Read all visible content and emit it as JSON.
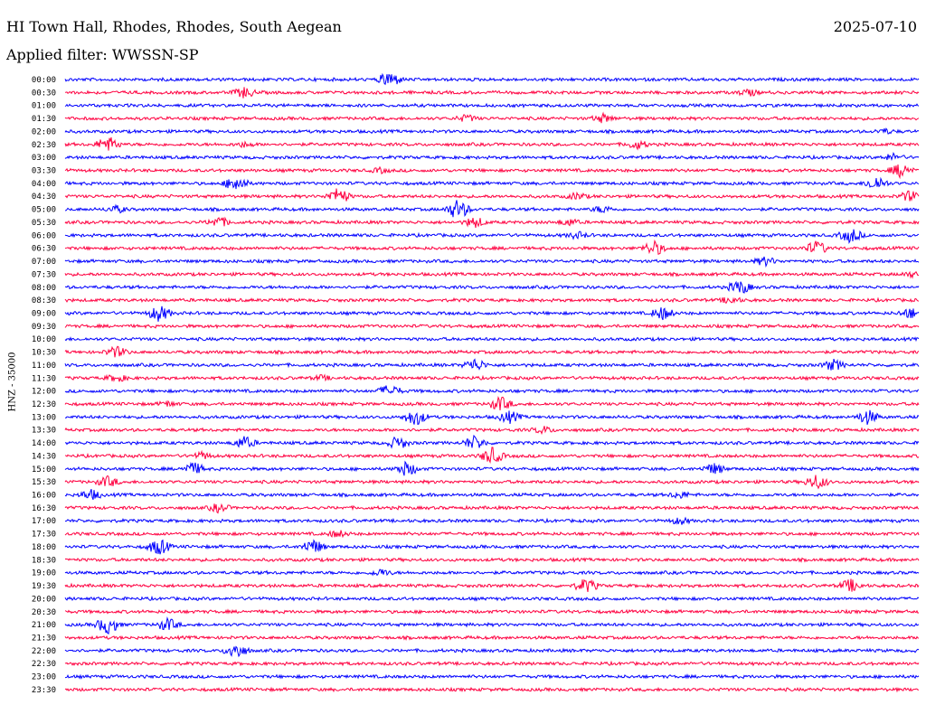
{
  "header": {
    "station": "HI Town Hall, Rhodes, Rhodes, South Aegean",
    "date": "2025-07-10",
    "filter_label": "Applied filter: WWSSN-SP"
  },
  "y_axis_label": "HNZ - 35000",
  "colors": {
    "trace_a": "#0000ff",
    "trace_b": "#ff0040",
    "background": "#ffffff",
    "text": "#000000"
  },
  "rows": [
    {
      "time": "00:00",
      "color": "blue",
      "events": [
        {
          "at": 0.38,
          "amp": 9
        }
      ]
    },
    {
      "time": "00:30",
      "color": "red",
      "events": [
        {
          "at": 0.21,
          "amp": 6
        },
        {
          "at": 0.8,
          "amp": 4
        }
      ]
    },
    {
      "time": "01:00",
      "color": "blue",
      "events": []
    },
    {
      "time": "01:30",
      "color": "red",
      "events": [
        {
          "at": 0.47,
          "amp": 4
        },
        {
          "at": 0.63,
          "amp": 5
        }
      ]
    },
    {
      "time": "02:00",
      "color": "blue",
      "events": [
        {
          "at": 0.96,
          "amp": 3
        }
      ]
    },
    {
      "time": "02:30",
      "color": "red",
      "events": [
        {
          "at": 0.05,
          "amp": 9
        },
        {
          "at": 0.21,
          "amp": 3
        },
        {
          "at": 0.67,
          "amp": 5
        }
      ]
    },
    {
      "time": "03:00",
      "color": "blue",
      "events": [
        {
          "at": 0.97,
          "amp": 4
        }
      ]
    },
    {
      "time": "03:30",
      "color": "red",
      "events": [
        {
          "at": 0.37,
          "amp": 3
        },
        {
          "at": 0.98,
          "amp": 8
        }
      ]
    },
    {
      "time": "04:00",
      "color": "blue",
      "events": [
        {
          "at": 0.2,
          "amp": 9
        },
        {
          "at": 0.95,
          "amp": 8
        }
      ]
    },
    {
      "time": "04:30",
      "color": "red",
      "events": [
        {
          "at": 0.32,
          "amp": 9
        },
        {
          "at": 0.6,
          "amp": 4
        },
        {
          "at": 0.99,
          "amp": 6
        }
      ]
    },
    {
      "time": "05:00",
      "color": "blue",
      "events": [
        {
          "at": 0.46,
          "amp": 11
        },
        {
          "at": 0.06,
          "amp": 4
        },
        {
          "at": 0.63,
          "amp": 4
        }
      ]
    },
    {
      "time": "05:30",
      "color": "red",
      "events": [
        {
          "at": 0.18,
          "amp": 6
        },
        {
          "at": 0.48,
          "amp": 6
        },
        {
          "at": 0.59,
          "amp": 4
        }
      ]
    },
    {
      "time": "06:00",
      "color": "blue",
      "events": [
        {
          "at": 0.92,
          "amp": 8
        },
        {
          "at": 0.6,
          "amp": 4
        }
      ]
    },
    {
      "time": "06:30",
      "color": "red",
      "events": [
        {
          "at": 0.69,
          "amp": 8
        },
        {
          "at": 0.88,
          "amp": 8
        }
      ]
    },
    {
      "time": "07:00",
      "color": "blue",
      "events": [
        {
          "at": 0.82,
          "amp": 5
        }
      ]
    },
    {
      "time": "07:30",
      "color": "red",
      "events": [
        {
          "at": 0.99,
          "amp": 3
        }
      ]
    },
    {
      "time": "08:00",
      "color": "blue",
      "events": [
        {
          "at": 0.79,
          "amp": 8
        }
      ]
    },
    {
      "time": "08:30",
      "color": "red",
      "events": [
        {
          "at": 0.78,
          "amp": 4
        }
      ]
    },
    {
      "time": "09:00",
      "color": "blue",
      "events": [
        {
          "at": 0.11,
          "amp": 9
        },
        {
          "at": 0.7,
          "amp": 7
        },
        {
          "at": 0.99,
          "amp": 6
        }
      ]
    },
    {
      "time": "09:30",
      "color": "red",
      "events": []
    },
    {
      "time": "10:00",
      "color": "blue",
      "events": []
    },
    {
      "time": "10:30",
      "color": "red",
      "events": [
        {
          "at": 0.06,
          "amp": 6
        }
      ]
    },
    {
      "time": "11:00",
      "color": "blue",
      "events": [
        {
          "at": 0.48,
          "amp": 7
        },
        {
          "at": 0.9,
          "amp": 6
        }
      ]
    },
    {
      "time": "11:30",
      "color": "red",
      "events": [
        {
          "at": 0.06,
          "amp": 4
        },
        {
          "at": 0.3,
          "amp": 3
        }
      ]
    },
    {
      "time": "12:00",
      "color": "blue",
      "events": [
        {
          "at": 0.38,
          "amp": 7
        }
      ]
    },
    {
      "time": "12:30",
      "color": "red",
      "events": [
        {
          "at": 0.51,
          "amp": 8
        },
        {
          "at": 0.12,
          "amp": 3
        }
      ]
    },
    {
      "time": "13:00",
      "color": "blue",
      "events": [
        {
          "at": 0.41,
          "amp": 9
        },
        {
          "at": 0.52,
          "amp": 7
        },
        {
          "at": 0.94,
          "amp": 8
        }
      ]
    },
    {
      "time": "13:30",
      "color": "red",
      "events": [
        {
          "at": 0.56,
          "amp": 4
        }
      ]
    },
    {
      "time": "14:00",
      "color": "blue",
      "events": [
        {
          "at": 0.21,
          "amp": 7
        },
        {
          "at": 0.39,
          "amp": 7
        },
        {
          "at": 0.48,
          "amp": 8
        }
      ]
    },
    {
      "time": "14:30",
      "color": "red",
      "events": [
        {
          "at": 0.5,
          "amp": 9
        },
        {
          "at": 0.16,
          "amp": 4
        }
      ]
    },
    {
      "time": "15:00",
      "color": "blue",
      "events": [
        {
          "at": 0.15,
          "amp": 7
        },
        {
          "at": 0.4,
          "amp": 8
        },
        {
          "at": 0.76,
          "amp": 6
        }
      ]
    },
    {
      "time": "15:30",
      "color": "red",
      "events": [
        {
          "at": 0.05,
          "amp": 6
        },
        {
          "at": 0.88,
          "amp": 8
        }
      ]
    },
    {
      "time": "16:00",
      "color": "blue",
      "events": [
        {
          "at": 0.03,
          "amp": 6
        },
        {
          "at": 0.72,
          "amp": 4
        }
      ]
    },
    {
      "time": "16:30",
      "color": "red",
      "events": [
        {
          "at": 0.18,
          "amp": 5
        }
      ]
    },
    {
      "time": "17:00",
      "color": "blue",
      "events": [
        {
          "at": 0.72,
          "amp": 4
        }
      ]
    },
    {
      "time": "17:30",
      "color": "red",
      "events": [
        {
          "at": 0.32,
          "amp": 4
        }
      ]
    },
    {
      "time": "18:00",
      "color": "blue",
      "events": [
        {
          "at": 0.11,
          "amp": 9
        },
        {
          "at": 0.29,
          "amp": 8
        }
      ]
    },
    {
      "time": "18:30",
      "color": "red",
      "events": []
    },
    {
      "time": "19:00",
      "color": "blue",
      "events": [
        {
          "at": 0.37,
          "amp": 4
        }
      ]
    },
    {
      "time": "19:30",
      "color": "red",
      "events": [
        {
          "at": 0.61,
          "amp": 8
        },
        {
          "at": 0.92,
          "amp": 7
        }
      ]
    },
    {
      "time": "20:00",
      "color": "blue",
      "events": []
    },
    {
      "time": "20:30",
      "color": "red",
      "events": []
    },
    {
      "time": "21:00",
      "color": "blue",
      "events": [
        {
          "at": 0.05,
          "amp": 10
        },
        {
          "at": 0.12,
          "amp": 7
        }
      ]
    },
    {
      "time": "21:30",
      "color": "red",
      "events": []
    },
    {
      "time": "22:00",
      "color": "blue",
      "events": [
        {
          "at": 0.2,
          "amp": 9
        }
      ]
    },
    {
      "time": "22:30",
      "color": "red",
      "events": []
    },
    {
      "time": "23:00",
      "color": "blue",
      "events": []
    },
    {
      "time": "23:30",
      "color": "red",
      "events": []
    }
  ]
}
